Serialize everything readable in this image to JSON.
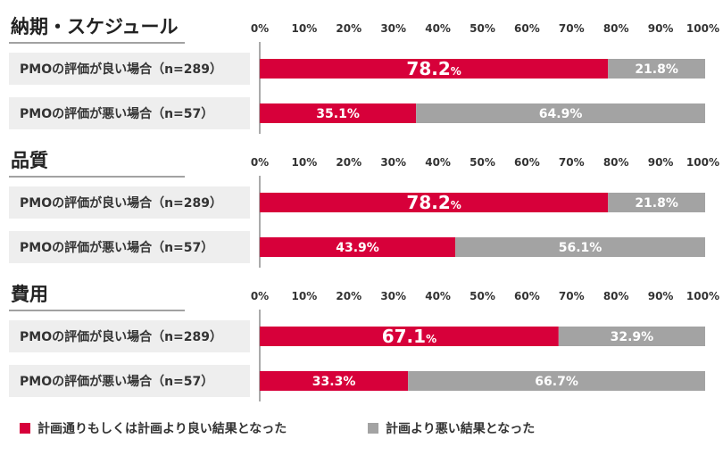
{
  "chart_data": [
    {
      "type": "bar",
      "orientation": "horizontal",
      "stacked": true,
      "title": "納期・スケジュール",
      "categories": [
        "PMOの評価が良い場合（n=289）",
        "PMOの評価が悪い場合（n=57）"
      ],
      "series": [
        {
          "name": "計画通りもしくは計画より良い結果となった",
          "values": [
            78.2,
            35.1
          ]
        },
        {
          "name": "計画より悪い結果となった",
          "values": [
            21.8,
            64.9
          ]
        }
      ],
      "xlim": [
        0,
        100
      ],
      "xticks": [
        "0%",
        "10%",
        "20%",
        "30%",
        "40%",
        "50%",
        "60%",
        "70%",
        "80%",
        "90%",
        "100%"
      ]
    },
    {
      "type": "bar",
      "orientation": "horizontal",
      "stacked": true,
      "title": "品質",
      "categories": [
        "PMOの評価が良い場合（n=289）",
        "PMOの評価が悪い場合（n=57）"
      ],
      "series": [
        {
          "name": "計画通りもしくは計画より良い結果となった",
          "values": [
            78.2,
            43.9
          ]
        },
        {
          "name": "計画より悪い結果となった",
          "values": [
            21.8,
            56.1
          ]
        }
      ],
      "xlim": [
        0,
        100
      ],
      "xticks": [
        "0%",
        "10%",
        "20%",
        "30%",
        "40%",
        "50%",
        "60%",
        "70%",
        "80%",
        "90%",
        "100%"
      ]
    },
    {
      "type": "bar",
      "orientation": "horizontal",
      "stacked": true,
      "title": "費用",
      "categories": [
        "PMOの評価が良い場合（n=289）",
        "PMOの評価が悪い場合（n=57）"
      ],
      "series": [
        {
          "name": "計画通りもしくは計画より良い結果となった",
          "values": [
            67.1,
            33.3
          ]
        },
        {
          "name": "計画より悪い結果となった",
          "values": [
            32.9,
            66.7
          ]
        }
      ],
      "xlim": [
        0,
        100
      ],
      "xticks": [
        "0%",
        "10%",
        "20%",
        "30%",
        "40%",
        "50%",
        "60%",
        "70%",
        "80%",
        "90%",
        "100%"
      ]
    }
  ],
  "colors": {
    "good": "#d7003a",
    "bad": "#a3a3a3",
    "label_bg": "#eeeeee"
  },
  "legend": {
    "good_label": "計画通りもしくは計画より良い結果となった",
    "bad_label": "計画より悪い結果となった"
  }
}
